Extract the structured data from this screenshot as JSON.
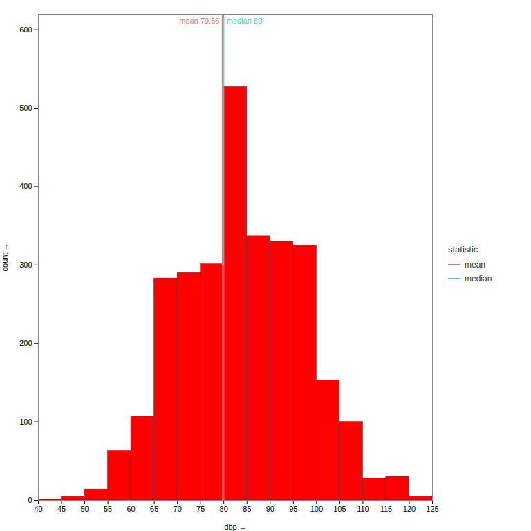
{
  "chart_data": {
    "type": "histogram",
    "xlabel": "dbp",
    "ylabel": "count",
    "bins": [
      40,
      45,
      50,
      55,
      60,
      65,
      70,
      75,
      80,
      85,
      90,
      95,
      100,
      105,
      110,
      115,
      120,
      125
    ],
    "counts": [
      1,
      5,
      14,
      63,
      107,
      283,
      290,
      301,
      527,
      337,
      330,
      325,
      153,
      100,
      28,
      30,
      5
    ],
    "color": "#FF0000",
    "xlim": [
      40,
      125
    ],
    "ylim": [
      0,
      620
    ],
    "xticks": [
      40,
      45,
      50,
      55,
      60,
      65,
      70,
      75,
      80,
      85,
      90,
      95,
      100,
      105,
      110,
      115,
      120,
      125
    ],
    "yticks": [
      0,
      100,
      200,
      300,
      400,
      500,
      600
    ],
    "vlines": [
      {
        "name": "mean",
        "x": 79.66,
        "color": "#E8736C"
      },
      {
        "name": "median",
        "x": 80,
        "color": "#5BC8C8"
      }
    ],
    "annotations": [
      {
        "text": "mean 79.66",
        "x": 79.66,
        "y": 615,
        "color": "#E8736C"
      },
      {
        "text": "median 80",
        "x": 80,
        "y": 615,
        "color": "#5BC8C8"
      }
    ],
    "legend_title": "statistic",
    "legend": "right",
    "grid": false
  }
}
